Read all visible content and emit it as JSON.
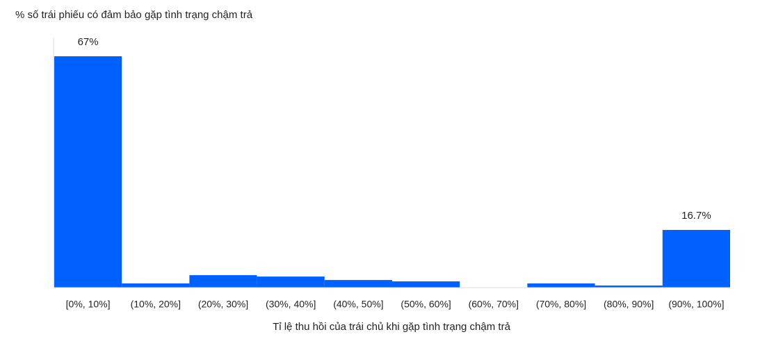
{
  "chart_data": {
    "type": "bar",
    "y_axis_label": "% số trái phiếu có đảm bảo gặp tình trạng chậm trả",
    "x_axis_label": "Tỉ lệ thu hồi của trái chủ khi gặp tình trạng chậm trả",
    "categories": [
      "[0%, 10%]",
      "(10%, 20%]",
      "(20%, 30%]",
      "(30%, 40%]",
      "(40%, 50%]",
      "(50%, 60%]",
      "(60%, 70%]",
      "(70%, 80%]",
      "(80%, 90%]",
      "(90%, 100%]"
    ],
    "values": [
      67,
      1.2,
      3.6,
      3.2,
      2.2,
      1.8,
      0,
      1.2,
      0.6,
      16.7
    ],
    "value_labels": [
      "67%",
      null,
      null,
      null,
      null,
      null,
      null,
      null,
      null,
      "16.7%"
    ],
    "color": "#0061fe",
    "ylim": [
      0,
      67
    ]
  }
}
